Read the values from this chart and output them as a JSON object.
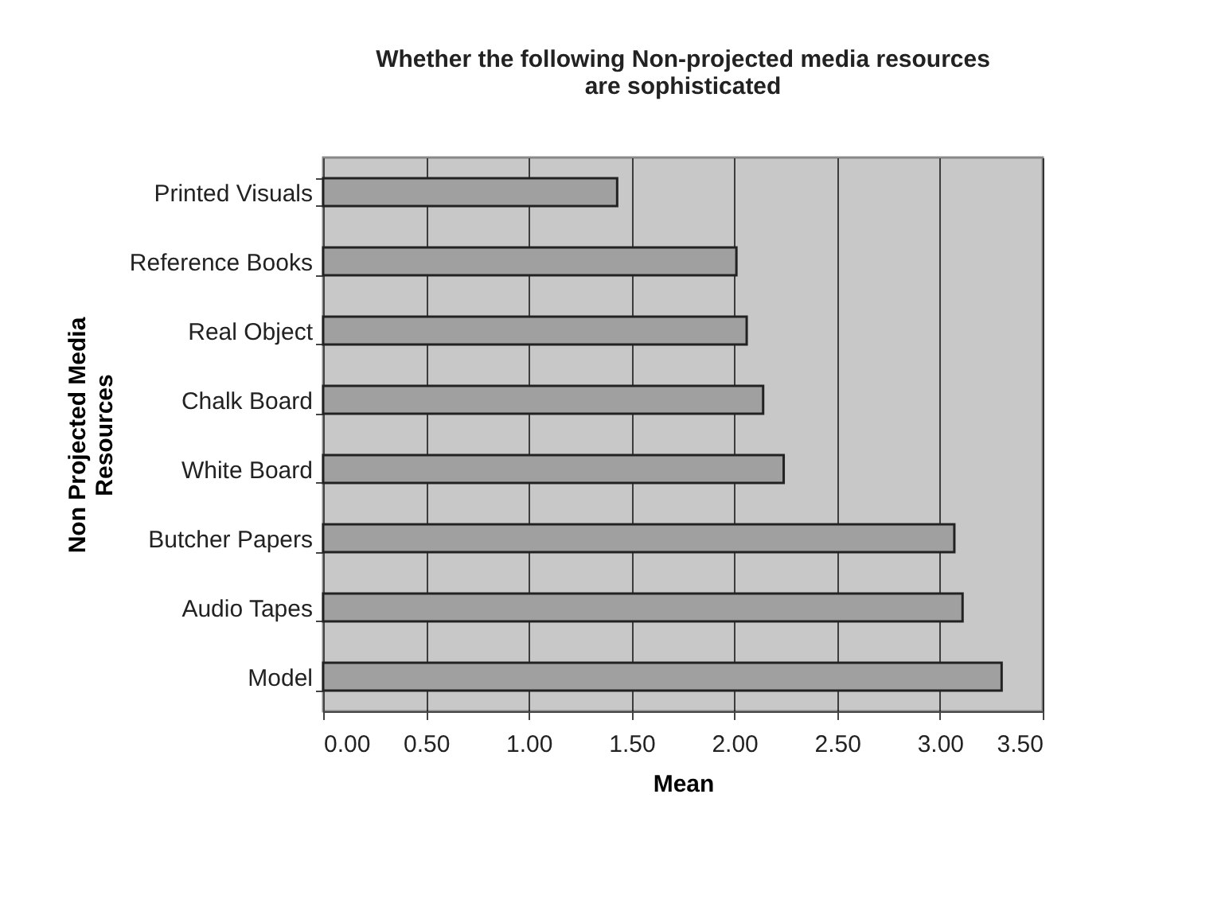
{
  "chart_data": {
    "type": "bar",
    "orientation": "horizontal",
    "title": "Whether the following Non-projected media resources are sophisticated",
    "xlabel": "Mean",
    "ylabel": "Non Projected Media Resources",
    "categories": [
      "Printed Visuals",
      "Reference Books",
      "Real Object",
      "Chalk Board",
      "White Board",
      "Butcher Papers",
      "Audio Tapes",
      "Model"
    ],
    "values": [
      1.43,
      2.01,
      2.06,
      2.14,
      2.24,
      3.07,
      3.11,
      3.3
    ],
    "color": "#a0a0a0",
    "xlim": [
      0,
      3.5
    ],
    "xticks": [
      {
        "value": 0,
        "label": "0.00"
      },
      {
        "value": 0.5,
        "label": "0.50"
      },
      {
        "value": 1,
        "label": "1.00"
      },
      {
        "value": 1.5,
        "label": "1.50"
      },
      {
        "value": 2,
        "label": "2.00"
      },
      {
        "value": 2.5,
        "label": "2.50"
      },
      {
        "value": 3,
        "label": "3.00"
      },
      {
        "value": 3.5,
        "label": "3.50"
      }
    ],
    "grid": "x"
  }
}
